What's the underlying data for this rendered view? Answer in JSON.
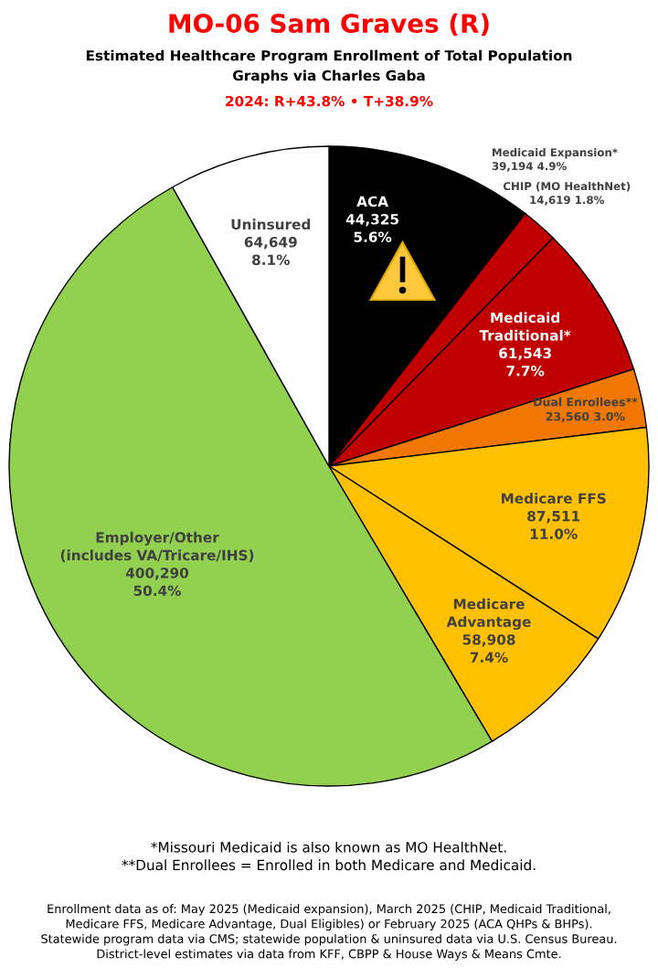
{
  "chart_data": {
    "type": "pie",
    "title": "MO-06 Sam Graves (R)",
    "subtitle": "Estimated Healthcare Program Enrollment of Total Population\nGraphs via Charles Gaba",
    "categories": [
      "ACA",
      "Medicaid Expansion*",
      "CHIP (MO HealthNet)",
      "Medicaid Traditional*",
      "Dual Enrollees**",
      "Medicare FFS",
      "Medicare Advantage",
      "Employer/Other\n(includes VA/Tricare/IHS)",
      "Uninsured"
    ],
    "values": [
      44325,
      39194,
      14619,
      61543,
      23560,
      87511,
      58908,
      400290,
      64649
    ],
    "value_labels": [
      "44,325\n5.6%",
      "39,194 4.9%",
      "14,619 1.8%",
      "61,543\n7.7%",
      "23,560 3.0%",
      "87,511\n11.0%",
      "58,908\n7.4%",
      "400,290\n50.4%",
      "64,649\n8.1%"
    ],
    "colors": [
      "#000000",
      "#000000",
      "#c00000",
      "#c00000",
      "#f07800",
      "#ffc000",
      "#ffc000",
      "#92d050",
      "#ffffff"
    ],
    "annotations": [
      "2024: R+43.8% • T+38.9%",
      "*Missouri Medicaid is also known as MO HealthNet.\n**Dual Enrollees = Enrolled in both Medicare and Medicaid.",
      "Enrollment data as of: May 2025 (Medicaid expansion), March 2025 (CHIP, Medicaid Traditional,\nMedicare FFS, Medicare Advantage, Dual Eligibles) or February 2025 (ACA QHPs & BHPs).\nStatewide program data via CMS; statewide population & uninsured data via U.S. Census Bureau.\nDistrict-level estimates via data from KFF, CBPP & House Ways & Means Cmte."
    ]
  }
}
